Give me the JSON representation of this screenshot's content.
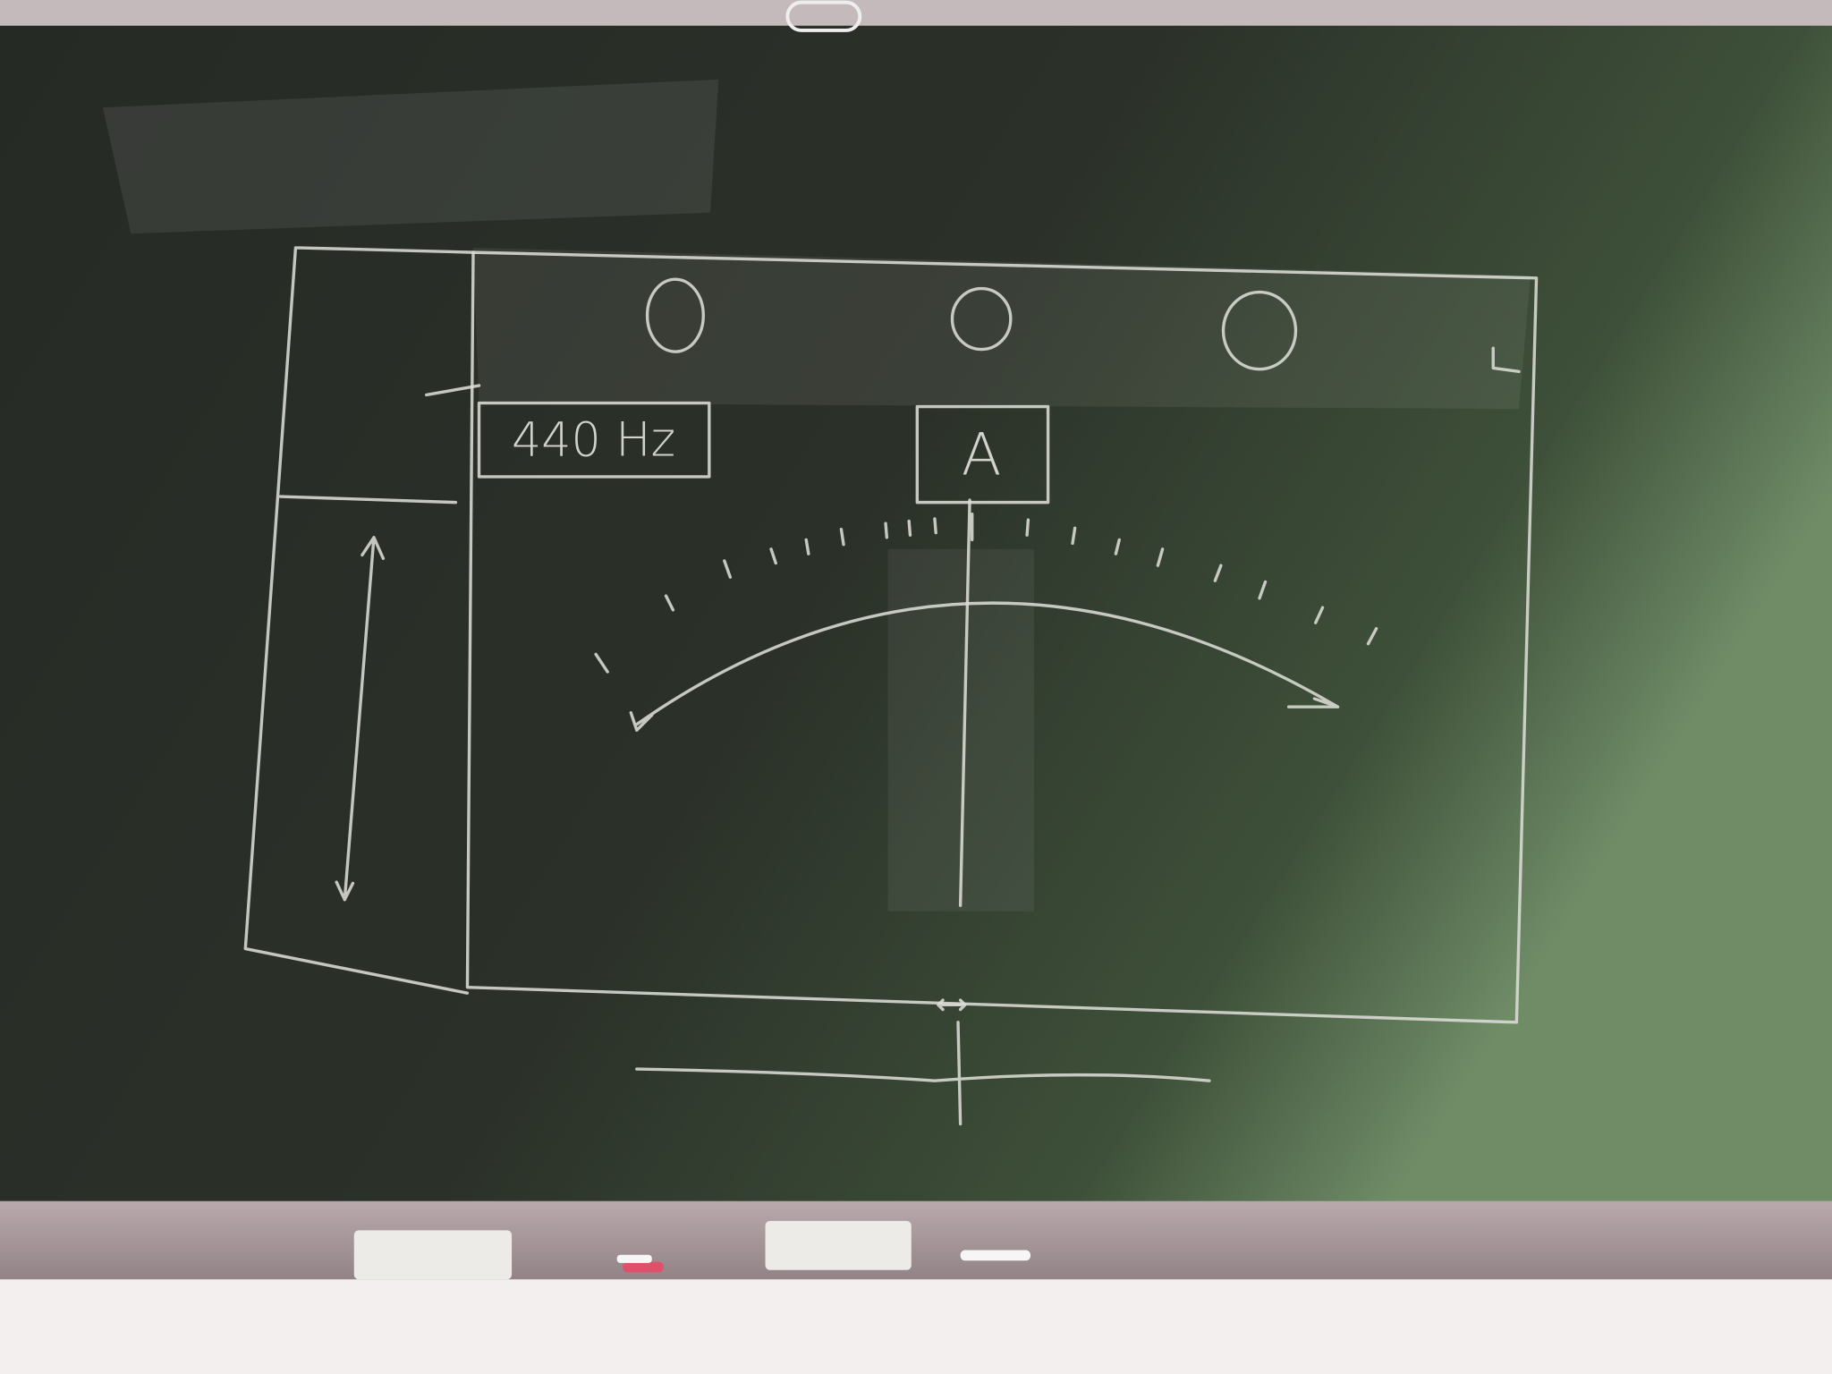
{
  "labels": {
    "frequency": "440 Hz",
    "note": "A"
  }
}
